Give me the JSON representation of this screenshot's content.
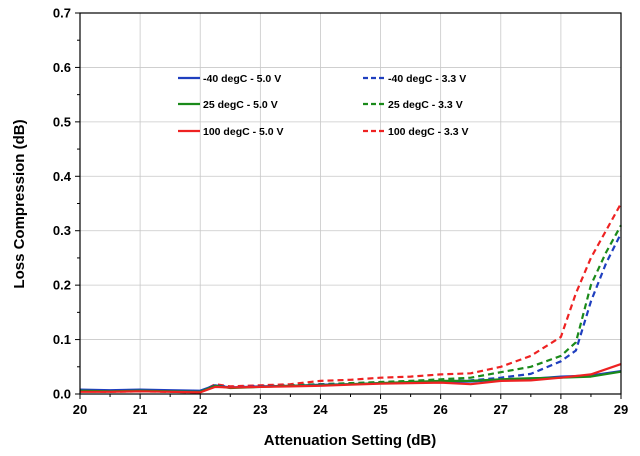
{
  "chart_data": {
    "type": "line",
    "title": "",
    "xlabel": "Attenuation Setting (dB)",
    "ylabel": "Loss Compression (dB)",
    "xlim": [
      20,
      29
    ],
    "ylim": [
      0,
      0.7
    ],
    "xticks": [
      "20",
      "21",
      "22",
      "23",
      "24",
      "25",
      "26",
      "27",
      "28",
      "29"
    ],
    "yticks": [
      "0.0",
      "0.1",
      "0.2",
      "0.3",
      "0.4",
      "0.5",
      "0.6",
      "0.7"
    ],
    "grid": true,
    "legend_position": "top-center",
    "series": [
      {
        "name": "-40 degC - 5.0 V",
        "color": "#1f3fbf",
        "dash": "solid",
        "x": [
          20,
          20.5,
          21,
          21.5,
          22,
          22.25,
          22.5,
          23,
          23.5,
          24,
          24.5,
          25,
          25.5,
          26,
          26.5,
          27,
          27.5,
          28,
          28.5,
          29
        ],
        "y": [
          0.008,
          0.007,
          0.008,
          0.007,
          0.006,
          0.016,
          0.012,
          0.014,
          0.015,
          0.017,
          0.018,
          0.02,
          0.021,
          0.022,
          0.023,
          0.026,
          0.028,
          0.032,
          0.034,
          0.042
        ]
      },
      {
        "name": "25 degC - 5.0 V",
        "color": "#1a8a1a",
        "dash": "solid",
        "x": [
          20,
          20.5,
          21,
          21.5,
          22,
          22.25,
          22.5,
          23,
          23.5,
          24,
          24.5,
          25,
          25.5,
          26,
          26.5,
          27,
          27.5,
          28,
          28.5,
          29
        ],
        "y": [
          0.006,
          0.005,
          0.006,
          0.005,
          0.004,
          0.015,
          0.011,
          0.013,
          0.015,
          0.016,
          0.018,
          0.02,
          0.022,
          0.024,
          0.024,
          0.027,
          0.029,
          0.03,
          0.032,
          0.041
        ]
      },
      {
        "name": "100 degC - 5.0 V",
        "color": "#ee2222",
        "dash": "solid",
        "x": [
          20,
          20.5,
          21,
          21.5,
          22,
          22.25,
          22.5,
          23,
          23.5,
          24,
          24.5,
          25,
          25.5,
          26,
          26.5,
          27,
          27.5,
          28,
          28.5,
          29
        ],
        "y": [
          0.004,
          0.004,
          0.005,
          0.004,
          0.003,
          0.013,
          0.012,
          0.013,
          0.014,
          0.015,
          0.017,
          0.019,
          0.02,
          0.021,
          0.018,
          0.024,
          0.025,
          0.03,
          0.036,
          0.055
        ]
      },
      {
        "name": "-40 degC - 3.3 V",
        "color": "#1f3fbf",
        "dash": "dashed",
        "x": [
          20,
          20.5,
          21,
          21.5,
          22,
          22.25,
          22.5,
          23,
          23.5,
          24,
          24.5,
          25,
          25.5,
          26,
          26.5,
          27,
          27.5,
          28,
          28.25,
          28.5,
          28.75,
          29
        ],
        "y": [
          0.007,
          0.006,
          0.007,
          0.006,
          0.005,
          0.017,
          0.013,
          0.015,
          0.016,
          0.018,
          0.019,
          0.021,
          0.022,
          0.024,
          0.025,
          0.03,
          0.037,
          0.06,
          0.08,
          0.17,
          0.24,
          0.295
        ]
      },
      {
        "name": "25 degC - 3.3 V",
        "color": "#1a8a1a",
        "dash": "dashed",
        "x": [
          20,
          20.5,
          21,
          21.5,
          22,
          22.25,
          22.5,
          23,
          23.5,
          24,
          24.5,
          25,
          25.5,
          26,
          26.5,
          27,
          27.5,
          28,
          28.25,
          28.5,
          28.75,
          29
        ],
        "y": [
          0.006,
          0.005,
          0.006,
          0.005,
          0.004,
          0.016,
          0.012,
          0.014,
          0.016,
          0.018,
          0.02,
          0.022,
          0.024,
          0.027,
          0.03,
          0.04,
          0.05,
          0.07,
          0.095,
          0.2,
          0.26,
          0.31
        ]
      },
      {
        "name": "100 degC - 3.3 V",
        "color": "#ee2222",
        "dash": "dashed",
        "x": [
          20,
          20.5,
          21,
          21.5,
          22,
          22.25,
          22.5,
          23,
          23.5,
          24,
          24.5,
          25,
          25.5,
          26,
          26.5,
          27,
          27.5,
          28,
          28.25,
          28.5,
          28.75,
          29
        ],
        "y": [
          0.005,
          0.004,
          0.005,
          0.004,
          0.003,
          0.018,
          0.014,
          0.016,
          0.018,
          0.024,
          0.026,
          0.03,
          0.032,
          0.036,
          0.038,
          0.05,
          0.07,
          0.105,
          0.185,
          0.25,
          0.3,
          0.35
        ]
      }
    ]
  }
}
